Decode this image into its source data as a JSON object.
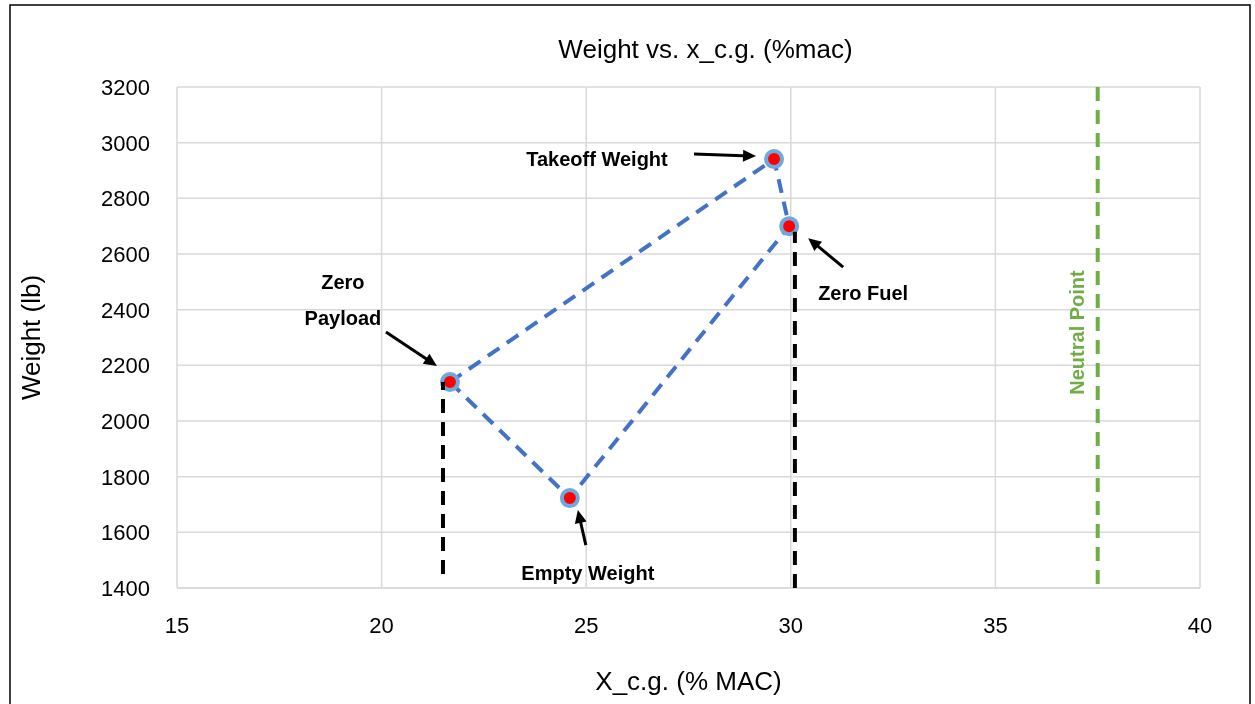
{
  "chart_data": {
    "type": "line",
    "title": "Weight vs. x_c.g. (%mac)",
    "xlabel": "X_c.g. (% MAC)",
    "ylabel": "Weight (lb)",
    "xlim": [
      15,
      40
    ],
    "xticks": [
      15,
      20,
      25,
      30,
      35,
      40
    ],
    "ylim": [
      1400,
      3200
    ],
    "yticks": [
      1400,
      1600,
      1800,
      2000,
      2200,
      2400,
      2600,
      2800,
      3000,
      3200
    ],
    "grid": true,
    "series": [
      {
        "type": "line",
        "color": "#4472c4",
        "line_style": "dashed",
        "marker": "none",
        "x": [
          21.67,
          29.59,
          29.96
        ],
        "values": [
          2140,
          2941,
          2700
        ]
      },
      {
        "color": "#4472c4",
        "line_style": "dashed",
        "marker": "none",
        "x": [
          21.67,
          24.6,
          29.96
        ],
        "values": [
          2140,
          1723,
          2700
        ]
      },
      {
        "type": "scatter",
        "color": "#ff0000",
        "marker": "circle",
        "x": [
          29.59,
          29.96,
          21.67,
          24.6
        ],
        "values": [
          2941,
          2700,
          2140,
          1723
        ]
      },
      {
        "type": "line",
        "color": "#000000",
        "line_style": "dashed",
        "marker": "none",
        "x": [
          21.5,
          21.5
        ],
        "values": [
          1450,
          2140
        ]
      },
      {
        "color": "#000000",
        "line_style": "dashed",
        "marker": "none",
        "x": [
          30.1,
          30.1
        ],
        "values": [
          1400,
          2680
        ]
      }
    ],
    "ref_lines": [
      {
        "axis": "x",
        "value": 37.5,
        "label": "Neutral Point",
        "color": "#70ad47",
        "line_style": "dashed"
      }
    ],
    "annotations": [
      "Takeoff Weight",
      "Zero Fuel",
      "Zero Payload",
      "Empty Weight"
    ]
  }
}
